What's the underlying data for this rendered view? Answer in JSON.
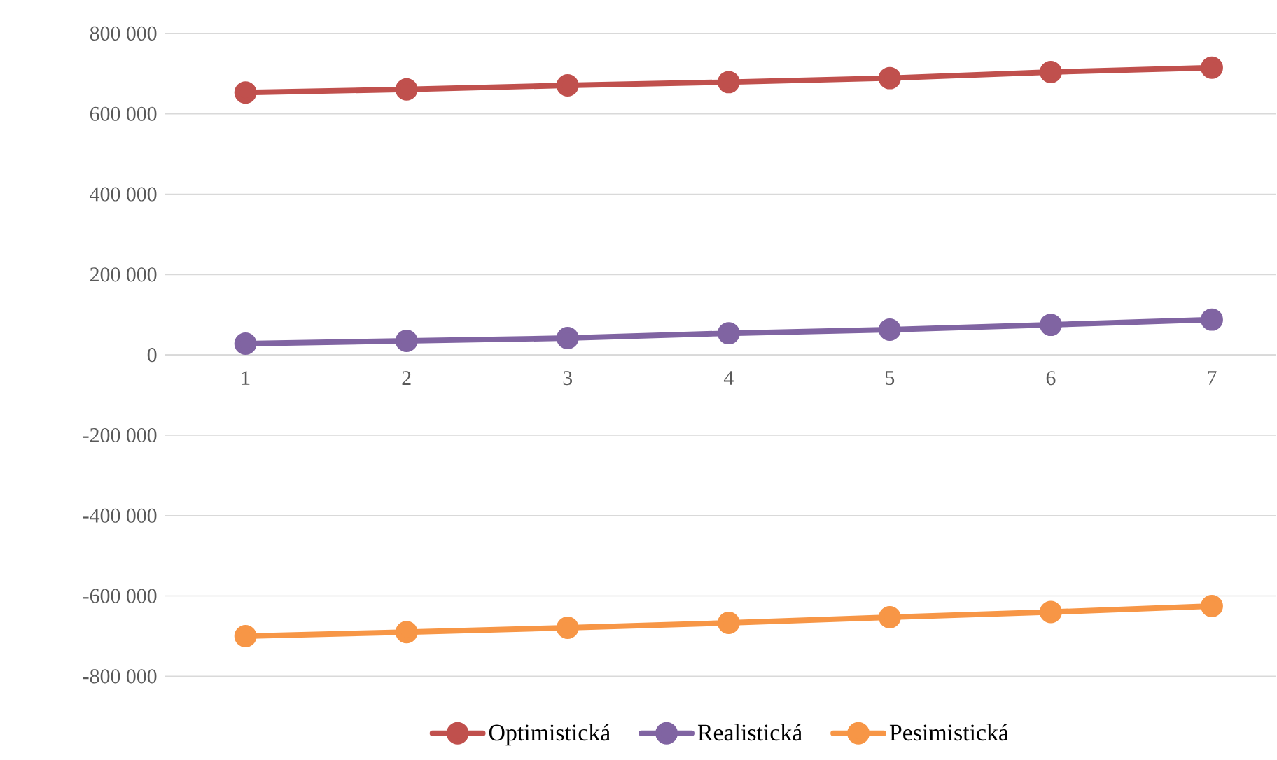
{
  "chart_data": {
    "type": "line",
    "categories": [
      "1",
      "2",
      "3",
      "4",
      "5",
      "6",
      "7"
    ],
    "series": [
      {
        "name": "Optimistická",
        "color": "#c0504d",
        "values": [
          653000,
          661000,
          671000,
          679000,
          689000,
          704000,
          715000
        ]
      },
      {
        "name": "Realistická",
        "color": "#8064a2",
        "values": [
          28000,
          35000,
          42000,
          54000,
          63000,
          75000,
          88000
        ]
      },
      {
        "name": "Pesimistická",
        "color": "#f79646",
        "values": [
          -700000,
          -690000,
          -679000,
          -667000,
          -653000,
          -640000,
          -625000
        ]
      }
    ],
    "ylim": [
      -800000,
      800000
    ],
    "yticks": [
      {
        "value": -800000,
        "label": "-800 000"
      },
      {
        "value": -600000,
        "label": "-600 000"
      },
      {
        "value": -400000,
        "label": "-400 000"
      },
      {
        "value": -200000,
        "label": "-200 000"
      },
      0,
      {
        "value": 200000,
        "label": "200 000"
      },
      {
        "value": 400000,
        "label": "400 000"
      },
      {
        "value": 600000,
        "label": "600 000"
      },
      {
        "value": 800000,
        "label": "800 000"
      }
    ],
    "grid": "y",
    "legend": "bottom",
    "marker": "circle",
    "line_style": "solid"
  }
}
